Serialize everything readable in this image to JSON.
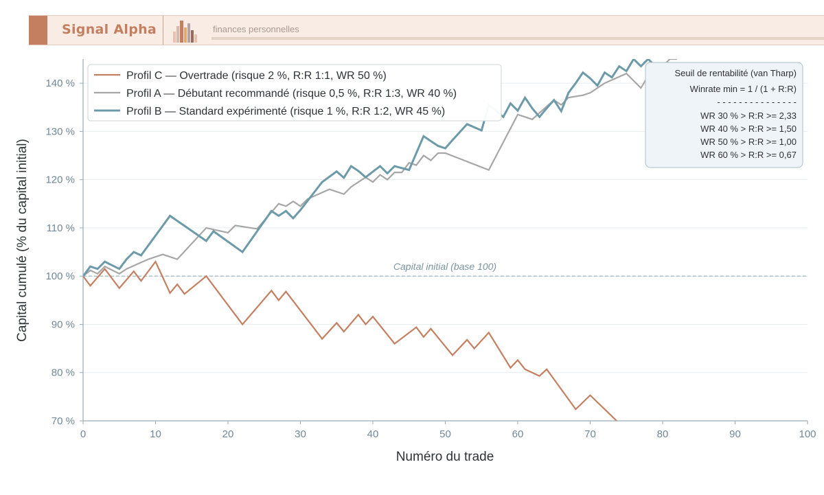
{
  "brand": {
    "name": "Signal Alpha",
    "tagline": "finances personnelles",
    "colors": {
      "accent": "#c47f61",
      "banner_bg": "#f8ece4",
      "logo": [
        "#e8c2b0",
        "#c47f61",
        "#e0a96d",
        "#b3a2a8",
        "#9a6a5a"
      ]
    }
  },
  "chart_data": {
    "type": "line",
    "xlabel": "Numéro du trade",
    "ylabel": "Capital cumulé (% du capital initial)",
    "xlim": [
      0,
      100
    ],
    "ylim": [
      70,
      145
    ],
    "xticks": [
      0,
      10,
      20,
      30,
      40,
      50,
      60,
      70,
      80,
      90,
      100
    ],
    "yticks": [
      70,
      80,
      90,
      100,
      110,
      120,
      130,
      140
    ],
    "ytick_labels": [
      "70 %",
      "80 %",
      "90 %",
      "100 %",
      "110 %",
      "120 %",
      "130 %",
      "140 %"
    ],
    "grid": true,
    "legend_position": "top-left",
    "series": [
      {
        "name": "Profil C — Overtrade (risque 2 %, R:R 1:1, WR 50 %)",
        "color": "#c47f61",
        "x": [
          0,
          1,
          3,
          5,
          7,
          8,
          10,
          12,
          13,
          14,
          17,
          22,
          26,
          27,
          28,
          33,
          35,
          36,
          38,
          39,
          40,
          43,
          46,
          47,
          48,
          51,
          53,
          54,
          56,
          59,
          60,
          61,
          63,
          64,
          68,
          70,
          74
        ],
        "y": [
          100,
          98,
          101.5,
          97.5,
          101,
          99,
          103,
          96.5,
          98.3,
          96.3,
          100,
          90,
          97,
          95,
          96.8,
          87,
          90.3,
          88.5,
          92,
          90,
          91.6,
          86,
          89.4,
          87.4,
          89.1,
          83.6,
          86.8,
          85,
          88.3,
          81,
          82.6,
          80.7,
          79.3,
          80.7,
          72.4,
          75.3,
          69.5
        ]
      },
      {
        "name": "Profil A — Débutant recommandé (risque 0,5 %, R:R 1:3, WR 40 %)",
        "color": "#a6a6a6",
        "x": [
          0,
          1,
          2,
          3,
          5,
          6,
          9,
          11,
          13,
          17,
          20,
          21,
          24,
          25,
          27,
          28,
          29,
          30,
          31,
          34,
          36,
          37,
          39,
          40,
          41,
          42,
          43,
          44,
          45,
          46,
          47,
          48,
          49,
          50,
          56,
          60,
          62,
          65,
          66,
          67,
          69,
          70,
          72,
          75,
          77,
          78,
          79,
          80,
          81,
          82
        ],
        "y": [
          100,
          101.2,
          100.5,
          102,
          100.5,
          101.5,
          103.5,
          104.5,
          103.5,
          110,
          109,
          110.5,
          109.8,
          111.5,
          115,
          114.5,
          115.5,
          114.5,
          116,
          118,
          117,
          118.5,
          120.5,
          119.5,
          121,
          120,
          121.5,
          121.5,
          123.5,
          123,
          125,
          124,
          125.5,
          125.5,
          122,
          133.5,
          132.5,
          136.5,
          135.5,
          137,
          137.5,
          138,
          140,
          142,
          139,
          141.5,
          143.5,
          143.5,
          145,
          145
        ]
      },
      {
        "name": "Profil B — Standard expérimenté (risque 1 %, R:R 1:2, WR 45 %)",
        "color": "#6c9aa8",
        "x": [
          0,
          1,
          2,
          3,
          5,
          6,
          7,
          8,
          12,
          17,
          18,
          22,
          26,
          27,
          28,
          29,
          30,
          33,
          35,
          36,
          37,
          38,
          39,
          41,
          42,
          43,
          45,
          47,
          48,
          49,
          50,
          51,
          53,
          55,
          56,
          58,
          59,
          60,
          61,
          62,
          63,
          64,
          65,
          66,
          67,
          68,
          69,
          70,
          71,
          72,
          73,
          74,
          75,
          76,
          77,
          78,
          79
        ],
        "y": [
          100,
          102,
          101.5,
          103,
          101.5,
          103.5,
          105,
          104.3,
          112.5,
          107.3,
          109.3,
          105,
          113.5,
          112.5,
          113.5,
          112,
          113.7,
          119.5,
          121.7,
          120.4,
          122.8,
          121.8,
          120.5,
          122.8,
          121.3,
          122.8,
          122,
          129,
          128,
          127,
          126.5,
          128.2,
          131.5,
          130.2,
          135.5,
          133,
          135.8,
          134.3,
          137,
          134.8,
          133,
          134.8,
          136.5,
          134.2,
          138,
          140,
          142.2,
          141,
          139.5,
          142.2,
          141.2,
          143.5,
          142.5,
          145,
          143.5,
          145,
          143.5
        ]
      }
    ],
    "annotations": {
      "base_line": {
        "y": 100,
        "label": "Capital initial (base 100)"
      },
      "info_box": {
        "title": "Seuil de rentabilité (van Tharp)",
        "formula": "Winrate min = 1 / (1 + R:R)",
        "divider": "- - - - - - - - - - - - - - -",
        "rows": [
          "WR 30 %  >  R:R >= 2,33",
          "WR 40 %  >  R:R >= 1,50",
          "WR 50 %  >  R:R >= 1,00",
          "WR 60 %  >  R:R >= 0,67"
        ]
      }
    }
  }
}
